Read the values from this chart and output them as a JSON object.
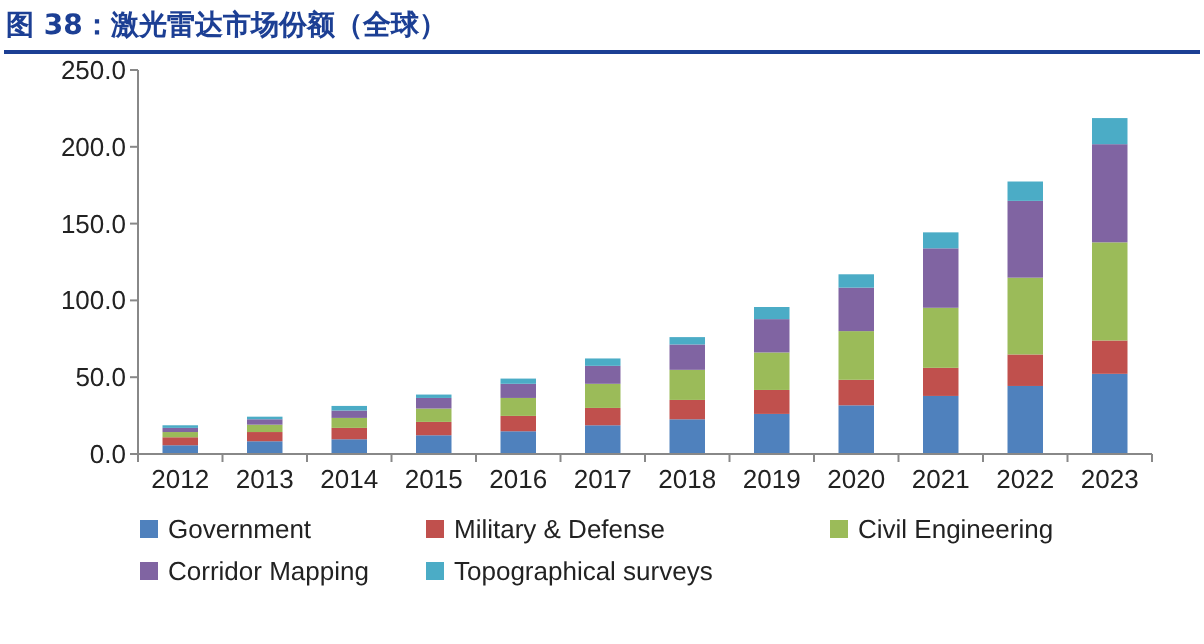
{
  "chart_data": {
    "type": "bar",
    "title": "图 38：激光雷达市场份额（全球）",
    "stacked": true,
    "legend": "bottom",
    "categories": [
      "2012",
      "2013",
      "2014",
      "2015",
      "2016",
      "2017",
      "2018",
      "2019",
      "2020",
      "2021",
      "2022",
      "2023"
    ],
    "ylim": [
      0,
      250
    ],
    "yticks": [
      {
        "value": 0,
        "label": "0.0"
      },
      {
        "value": 50,
        "label": "50.0"
      },
      {
        "value": 100,
        "label": "100.0"
      },
      {
        "value": 150,
        "label": "150.0"
      },
      {
        "value": 200,
        "label": "200.0"
      },
      {
        "value": 250,
        "label": "250.0"
      }
    ],
    "series": [
      {
        "name": "Government",
        "color": "#4f81bd",
        "values": [
          5.7,
          8.3,
          9.6,
          12.2,
          14.8,
          18.7,
          22.6,
          26.1,
          31.7,
          37.8,
          44.3,
          52.2
        ]
      },
      {
        "name": "Military & Defense",
        "color": "#c0504d",
        "values": [
          5.2,
          6.0,
          7.4,
          8.7,
          10.0,
          11.3,
          12.6,
          15.6,
          16.6,
          18.3,
          20.5,
          21.7
        ]
      },
      {
        "name": "Civil Engineering",
        "color": "#9bbb59",
        "values": [
          3.4,
          4.8,
          6.5,
          8.7,
          11.7,
          15.7,
          19.6,
          24.4,
          31.7,
          39.1,
          50.0,
          63.9
        ]
      },
      {
        "name": "Corridor Mapping",
        "color": "#8064a2",
        "values": [
          2.7,
          3.5,
          4.8,
          6.9,
          9.2,
          11.7,
          16.5,
          21.7,
          28.3,
          38.7,
          50.0,
          63.9
        ]
      },
      {
        "name": "Topographical surveys",
        "color": "#4bacc6",
        "values": [
          1.7,
          1.7,
          3.0,
          2.2,
          3.4,
          4.8,
          4.8,
          7.9,
          8.7,
          10.4,
          12.6,
          17.0
        ]
      }
    ]
  }
}
